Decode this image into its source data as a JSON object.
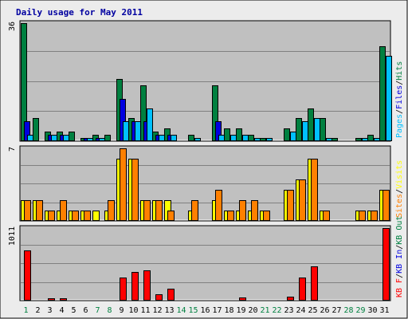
{
  "colors": {
    "background": "#ececec",
    "panel": "#c0c0c0",
    "frame": "#000000",
    "grid": "#808080",
    "title": "#0000a0",
    "weekday": "#000000",
    "weekend": "#008040",
    "pages": "#0000e0",
    "files": "#00c0ff",
    "hits": "#008040",
    "visits": "#ffff00",
    "sites": "#ff8000",
    "kbin": "#0000e0",
    "kbout": "#008040",
    "kbf": "#ff0000"
  },
  "chart_data": {
    "type": "bar",
    "title": "Daily usage for May 2011",
    "categories": [
      "1",
      "2",
      "3",
      "4",
      "5",
      "6",
      "7",
      "8",
      "9",
      "10",
      "11",
      "12",
      "13",
      "14",
      "15",
      "16",
      "17",
      "18",
      "19",
      "20",
      "21",
      "22",
      "23",
      "24",
      "25",
      "26",
      "27",
      "28",
      "29",
      "30",
      "31"
    ],
    "weekend_days": [
      "1",
      "7",
      "8",
      "14",
      "15",
      "21",
      "22",
      "28",
      "29"
    ],
    "panels": [
      {
        "id": "hits",
        "ymax": 36,
        "ymax_label": "36",
        "legend": [
          {
            "text": "Pages",
            "color": "#00c0ff"
          },
          {
            "text": "/",
            "color": "#000000"
          },
          {
            "text": "Files",
            "color": "#0000e0"
          },
          {
            "text": "/",
            "color": "#000000"
          },
          {
            "text": "Hits",
            "color": "#008040"
          }
        ],
        "series": [
          {
            "name": "Hits",
            "color": "#008040",
            "values": [
              36,
              7,
              3,
              3,
              3,
              1,
              2,
              2,
              19,
              7,
              17,
              3,
              4,
              0,
              2,
              0,
              17,
              4,
              4,
              2,
              1,
              0,
              4,
              7,
              10,
              7,
              1,
              0,
              1,
              2,
              29
            ]
          },
          {
            "name": "Files",
            "color": "#0000e0",
            "values": [
              6,
              0,
              2,
              2,
              0,
              1,
              1,
              0,
              13,
              6,
              6,
              2,
              2,
              0,
              0,
              0,
              6,
              0,
              0,
              0,
              0,
              0,
              0,
              0,
              0,
              0,
              0,
              0,
              0,
              0,
              0
            ]
          },
          {
            "name": "Pages",
            "color": "#00c0ff",
            "values": [
              2,
              0,
              2,
              2,
              0,
              1,
              1,
              0,
              6,
              6,
              10,
              2,
              2,
              0,
              1,
              0,
              2,
              2,
              2,
              1,
              1,
              0,
              3,
              6,
              7,
              1,
              0,
              0,
              1,
              1,
              26
            ]
          }
        ]
      },
      {
        "id": "visits",
        "ymax": 7,
        "ymax_label": "7",
        "legend": [
          {
            "text": "Sites",
            "color": "#ff8000"
          },
          {
            "text": "/",
            "color": "#000000"
          },
          {
            "text": "Visits",
            "color": "#ffff00"
          }
        ],
        "series": [
          {
            "name": "Visits",
            "color": "#ffff00",
            "values": [
              2,
              2,
              1,
              1,
              1,
              1,
              1,
              1,
              6,
              6,
              2,
              2,
              2,
              0,
              1,
              0,
              2,
              1,
              1,
              1,
              1,
              0,
              3,
              4,
              6,
              1,
              0,
              0,
              1,
              1,
              3
            ]
          },
          {
            "name": "Sites",
            "color": "#ff8000",
            "values": [
              2,
              2,
              1,
              2,
              1,
              1,
              0,
              2,
              7,
              6,
              2,
              2,
              1,
              0,
              2,
              0,
              3,
              1,
              2,
              2,
              1,
              0,
              3,
              4,
              6,
              1,
              0,
              0,
              1,
              1,
              3
            ]
          }
        ]
      },
      {
        "id": "kbytes",
        "ymax": 1011,
        "ymax_label": "1011",
        "legend": [
          {
            "text": "KB F",
            "color": "#ff0000"
          },
          {
            "text": "/",
            "color": "#000000"
          },
          {
            "text": "KB In",
            "color": "#0000e0"
          },
          {
            "text": "/",
            "color": "#000000"
          },
          {
            "text": "KB Out",
            "color": "#008040"
          }
        ],
        "series": [
          {
            "name": "KB Out",
            "color": "#008040",
            "values": [
              6,
              0,
              6,
              6,
              6,
              6,
              6,
              6,
              6,
              6,
              6,
              6,
              6,
              0,
              0,
              0,
              6,
              6,
              6,
              6,
              6,
              0,
              6,
              6,
              6,
              6,
              6,
              6,
              6,
              6,
              6
            ]
          },
          {
            "name": "KB F",
            "color": "#ff0000",
            "values": [
              700,
              0,
              35,
              35,
              8,
              8,
              0,
              0,
              320,
              400,
              420,
              90,
              170,
              0,
              0,
              0,
              15,
              15,
              40,
              10,
              10,
              0,
              55,
              320,
              480,
              15,
              0,
              0,
              8,
              8,
              1011
            ]
          }
        ]
      }
    ]
  }
}
